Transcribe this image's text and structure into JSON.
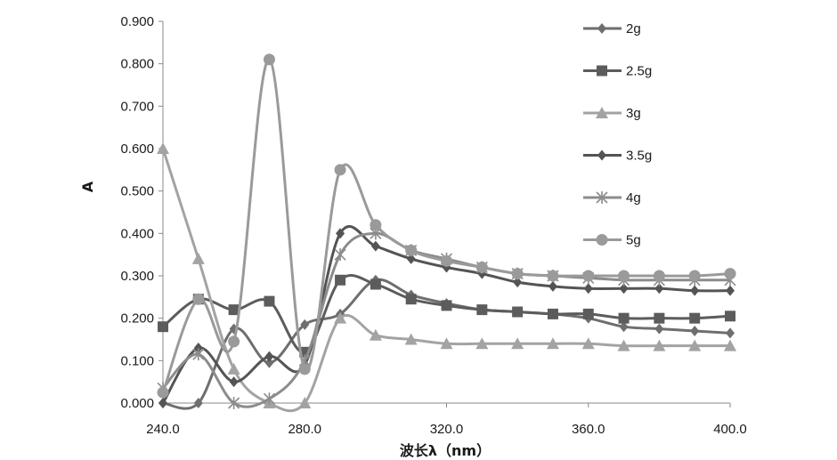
{
  "chart_data": {
    "type": "line",
    "xlabel": "波长λ（nm）",
    "ylabel": "A",
    "xlim": [
      240,
      400
    ],
    "ylim": [
      0,
      0.9
    ],
    "x_ticks": [
      "240.0",
      "280.0",
      "320.0",
      "360.0",
      "400.0"
    ],
    "y_ticks": [
      "0.000",
      "0.100",
      "0.200",
      "0.300",
      "0.400",
      "0.500",
      "0.600",
      "0.700",
      "0.800",
      "0.900"
    ],
    "grid": false,
    "legend_position": "right",
    "x": [
      240,
      250,
      260,
      270,
      280,
      290,
      300,
      310,
      320,
      330,
      340,
      350,
      360,
      370,
      380,
      390,
      400
    ],
    "series": [
      {
        "name": "2g",
        "marker": "diamond",
        "color": "#6e6e6e",
        "values": [
          0.0,
          0.0,
          0.175,
          0.095,
          0.185,
          0.21,
          0.29,
          0.255,
          0.235,
          0.22,
          0.215,
          0.21,
          0.2,
          0.18,
          0.175,
          0.17,
          0.165
        ]
      },
      {
        "name": "2.5g",
        "marker": "square",
        "color": "#5c5c5c",
        "values": [
          0.18,
          0.245,
          0.22,
          0.24,
          0.12,
          0.29,
          0.28,
          0.245,
          0.23,
          0.22,
          0.215,
          0.21,
          0.21,
          0.2,
          0.2,
          0.2,
          0.205
        ]
      },
      {
        "name": "3g",
        "marker": "triangle",
        "color": "#a3a3a3",
        "values": [
          0.6,
          0.34,
          0.08,
          0.0,
          0.0,
          0.2,
          0.16,
          0.15,
          0.14,
          0.14,
          0.14,
          0.14,
          0.14,
          0.135,
          0.135,
          0.135,
          0.135
        ]
      },
      {
        "name": "3.5g",
        "marker": "diamond",
        "color": "#545454",
        "values": [
          0.0,
          0.13,
          0.05,
          0.11,
          0.09,
          0.4,
          0.37,
          0.34,
          0.32,
          0.305,
          0.285,
          0.275,
          0.27,
          0.27,
          0.27,
          0.265,
          0.265
        ]
      },
      {
        "name": "4g",
        "marker": "asterisk",
        "color": "#8c8c8c",
        "values": [
          0.035,
          0.115,
          0.0,
          0.01,
          0.1,
          0.35,
          0.4,
          0.36,
          0.34,
          0.32,
          0.305,
          0.3,
          0.295,
          0.29,
          0.29,
          0.29,
          0.29
        ]
      },
      {
        "name": "5g",
        "marker": "circle",
        "color": "#9a9a9a",
        "values": [
          0.025,
          0.245,
          0.145,
          0.81,
          0.08,
          0.55,
          0.42,
          0.36,
          0.335,
          0.32,
          0.305,
          0.3,
          0.3,
          0.3,
          0.3,
          0.3,
          0.305
        ]
      }
    ]
  }
}
